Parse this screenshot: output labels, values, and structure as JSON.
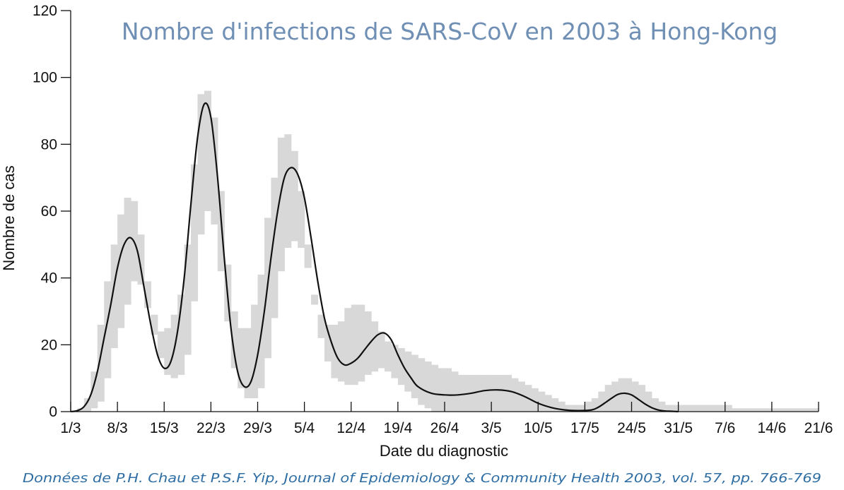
{
  "colors": {
    "title": "#6f8fb4",
    "source": "#2f6ea4",
    "band": "#d8d8d8",
    "curve": "#111111",
    "axis": "#111111"
  },
  "chart_data": {
    "type": "area",
    "title": "Nombre d'infections de SARS-CoV en 2003 à Hong-Kong",
    "xlabel": "Date du diagnostic",
    "ylabel": "Nombre de cas",
    "source": "Données de P.H. Chau et P.S.F. Yip, Journal of Epidemiology & Community Health 2003, vol. 57, pp. 766-769",
    "ylim": [
      0,
      120
    ],
    "yticks": [
      0,
      20,
      40,
      60,
      80,
      100,
      120
    ],
    "xlim": [
      "2003-03-01",
      "2003-06-21"
    ],
    "xticks": [
      "2003-03-01",
      "2003-03-08",
      "2003-03-15",
      "2003-03-22",
      "2003-03-29",
      "2003-04-05",
      "2003-04-12",
      "2003-04-19",
      "2003-04-26",
      "2003-05-03",
      "2003-05-10",
      "2003-05-17",
      "2003-05-24",
      "2003-05-31",
      "2003-06-07",
      "2003-06-14",
      "2003-06-21"
    ],
    "xtick_labels": [
      "1/3",
      "8/3",
      "15/3",
      "22/3",
      "29/3",
      "5/4",
      "12/4",
      "19/4",
      "26/4",
      "3/5",
      "10/5",
      "17/5",
      "24/5",
      "31/5",
      "7/6",
      "14/6",
      "21/6"
    ],
    "grid": false,
    "legend": "none",
    "series": [
      {
        "type": "line",
        "x": [
          "2003-03-01",
          "2003-03-02",
          "2003-03-03",
          "2003-03-04",
          "2003-03-05",
          "2003-03-06",
          "2003-03-07",
          "2003-03-08",
          "2003-03-09",
          "2003-03-10",
          "2003-03-11",
          "2003-03-12",
          "2003-03-13",
          "2003-03-14",
          "2003-03-15",
          "2003-03-16",
          "2003-03-17",
          "2003-03-18",
          "2003-03-19",
          "2003-03-20",
          "2003-03-21",
          "2003-03-22",
          "2003-03-23",
          "2003-03-24",
          "2003-03-25",
          "2003-03-26",
          "2003-03-27",
          "2003-03-28",
          "2003-03-29",
          "2003-03-30",
          "2003-03-31",
          "2003-04-01",
          "2003-04-02",
          "2003-04-03",
          "2003-04-04",
          "2003-04-05",
          "2003-04-06",
          "2003-04-07",
          "2003-04-08",
          "2003-04-09",
          "2003-04-10",
          "2003-04-11",
          "2003-04-12",
          "2003-04-13",
          "2003-04-14",
          "2003-04-15",
          "2003-04-16",
          "2003-04-17",
          "2003-04-18",
          "2003-04-19",
          "2003-04-20",
          "2003-04-21",
          "2003-04-22",
          "2003-04-24",
          "2003-04-26",
          "2003-04-28",
          "2003-04-30",
          "2003-05-02",
          "2003-05-04",
          "2003-05-06",
          "2003-05-08",
          "2003-05-10",
          "2003-05-12",
          "2003-05-14",
          "2003-05-16",
          "2003-05-18",
          "2003-05-19",
          "2003-05-20",
          "2003-05-21",
          "2003-05-22",
          "2003-05-23",
          "2003-05-24",
          "2003-05-25",
          "2003-05-26",
          "2003-05-27",
          "2003-05-28",
          "2003-05-29",
          "2003-05-30",
          "2003-05-31"
        ],
        "values": [
          0,
          0.3,
          1.5,
          5,
          12,
          22,
          32,
          43,
          50,
          52,
          48,
          37,
          26,
          17,
          13,
          15,
          24,
          40,
          62,
          82,
          92,
          88,
          70,
          46,
          25,
          12,
          7.5,
          9,
          17,
          30,
          46,
          60,
          70,
          73,
          71,
          64,
          52,
          39,
          28,
          21,
          16,
          14,
          14.5,
          16,
          18.5,
          21,
          23,
          23.5,
          21.5,
          17,
          13,
          10,
          7.5,
          5.5,
          5,
          5,
          5.5,
          6.3,
          6.5,
          6,
          4.5,
          2.5,
          1.2,
          0.5,
          0.3,
          0.5,
          1.3,
          2.6,
          4,
          5.2,
          5.5,
          5,
          3.7,
          2.3,
          1.2,
          0.5,
          0.2,
          0.1,
          0
        ]
      },
      {
        "type": "band",
        "dates": [
          "2003-03-01",
          "2003-03-02",
          "2003-03-03",
          "2003-03-04",
          "2003-03-05",
          "2003-03-06",
          "2003-03-07",
          "2003-03-08",
          "2003-03-09",
          "2003-03-10",
          "2003-03-11",
          "2003-03-12",
          "2003-03-13",
          "2003-03-14",
          "2003-03-15",
          "2003-03-16",
          "2003-03-17",
          "2003-03-18",
          "2003-03-19",
          "2003-03-20",
          "2003-03-21",
          "2003-03-22",
          "2003-03-23",
          "2003-03-24",
          "2003-03-25",
          "2003-03-26",
          "2003-03-27",
          "2003-03-28",
          "2003-03-29",
          "2003-03-30",
          "2003-03-31",
          "2003-04-01",
          "2003-04-02",
          "2003-04-03",
          "2003-04-04",
          "2003-04-05",
          "2003-04-06",
          "2003-04-07",
          "2003-04-08",
          "2003-04-09",
          "2003-04-10",
          "2003-04-11",
          "2003-04-12",
          "2003-04-13",
          "2003-04-14",
          "2003-04-15",
          "2003-04-16",
          "2003-04-17",
          "2003-04-18",
          "2003-04-19",
          "2003-04-20",
          "2003-04-21",
          "2003-04-22",
          "2003-04-23",
          "2003-04-24",
          "2003-04-25",
          "2003-04-26",
          "2003-04-27",
          "2003-04-28",
          "2003-04-29",
          "2003-04-30",
          "2003-05-01",
          "2003-05-02",
          "2003-05-03",
          "2003-05-04",
          "2003-05-05",
          "2003-05-06",
          "2003-05-07",
          "2003-05-08",
          "2003-05-09",
          "2003-05-10",
          "2003-05-11",
          "2003-05-12",
          "2003-05-13",
          "2003-05-14",
          "2003-05-15",
          "2003-05-16",
          "2003-05-17",
          "2003-05-18",
          "2003-05-19",
          "2003-05-20",
          "2003-05-21",
          "2003-05-22",
          "2003-05-23",
          "2003-05-24",
          "2003-05-25",
          "2003-05-26",
          "2003-05-27",
          "2003-05-28",
          "2003-05-29",
          "2003-05-30",
          "2003-05-31",
          "2003-06-01",
          "2003-06-02",
          "2003-06-03",
          "2003-06-04",
          "2003-06-05",
          "2003-06-06",
          "2003-06-07",
          "2003-06-08",
          "2003-06-09",
          "2003-06-10",
          "2003-06-11",
          "2003-06-12",
          "2003-06-13",
          "2003-06-14",
          "2003-06-15",
          "2003-06-16",
          "2003-06-17",
          "2003-06-18",
          "2003-06-19",
          "2003-06-20"
        ],
        "upper": [
          0,
          1,
          4,
          12,
          26,
          39,
          50,
          59,
          64,
          63,
          53,
          39,
          29,
          24,
          25,
          29,
          35,
          50,
          74,
          95,
          96,
          88,
          66,
          44,
          30,
          25,
          25,
          32,
          41,
          58,
          70,
          82,
          83,
          78,
          66,
          50,
          35,
          29,
          26,
          26,
          27,
          31,
          32,
          32,
          30,
          27,
          24,
          21,
          20,
          19,
          18,
          17,
          16,
          15,
          14,
          13,
          13,
          12,
          11,
          11,
          11,
          11,
          11,
          11,
          11,
          11,
          10,
          9,
          8,
          7,
          6,
          5,
          4,
          3,
          2,
          2,
          2,
          3,
          4,
          6,
          8,
          9,
          10,
          10,
          9,
          8,
          6,
          4,
          3,
          2,
          2,
          2,
          2,
          2,
          2,
          2,
          2,
          2,
          2,
          1,
          1,
          1,
          1,
          1,
          1,
          1,
          1,
          1,
          1,
          1,
          1,
          1
        ],
        "lower": [
          0,
          0,
          0,
          1,
          3,
          10,
          19,
          25,
          32,
          39,
          38,
          31,
          23,
          16,
          11,
          10,
          11,
          17,
          33,
          53,
          60,
          56,
          42,
          27,
          13,
          7,
          4,
          4,
          7,
          16,
          28,
          42,
          49,
          51,
          49,
          43,
          32,
          22,
          15,
          10,
          9,
          8,
          8,
          9,
          11,
          12,
          13,
          12,
          10,
          8,
          6,
          4,
          2,
          1,
          0,
          0,
          0,
          0,
          0,
          0,
          0,
          0,
          0,
          0,
          0,
          0,
          0,
          0,
          0,
          0,
          0,
          0,
          0,
          0,
          0,
          0,
          0,
          0,
          0,
          0,
          0,
          0,
          0,
          0,
          0,
          0,
          0,
          0,
          0,
          0,
          0,
          0,
          0,
          0,
          0,
          0,
          0,
          0,
          0,
          0,
          0,
          0,
          0,
          0,
          0,
          0,
          0,
          0,
          0,
          0,
          0,
          0
        ]
      }
    ]
  }
}
